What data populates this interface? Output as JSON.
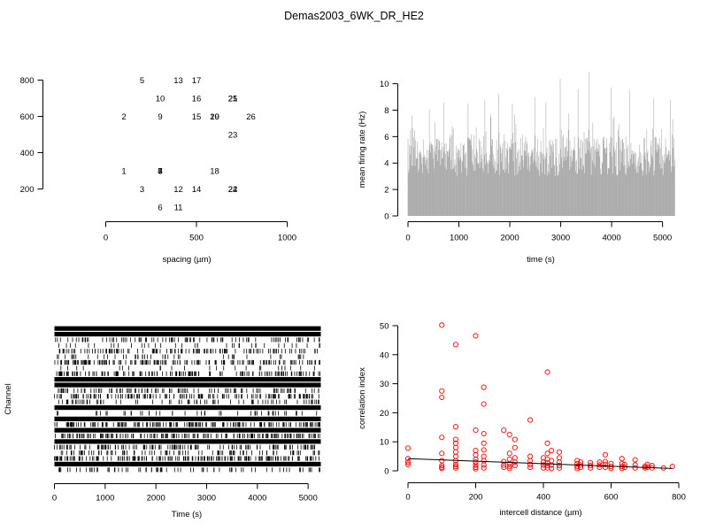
{
  "figure": {
    "title": "Demas2003_6WK_DR_HE2"
  },
  "chart_data": [
    {
      "type": "scatter",
      "panel": "electrode-layout",
      "markers": "text",
      "xlabel": "spacing (µm)",
      "ylabel": "",
      "xlim": [
        0,
        1000
      ],
      "ylim": [
        200,
        800
      ],
      "x_ticks": [
        0,
        500,
        1000
      ],
      "y_ticks": [
        200,
        400,
        600,
        800
      ],
      "points": [
        {
          "label": "1",
          "x": 100,
          "y": 300
        },
        {
          "label": "2",
          "x": 100,
          "y": 600
        },
        {
          "label": "3",
          "x": 200,
          "y": 200
        },
        {
          "label": "4",
          "x": 300,
          "y": 300
        },
        {
          "label": "5",
          "x": 200,
          "y": 800
        },
        {
          "label": "6",
          "x": 300,
          "y": 100
        },
        {
          "label": "7",
          "x": 300,
          "y": 300
        },
        {
          "label": "8",
          "x": 300,
          "y": 300
        },
        {
          "label": "9",
          "x": 300,
          "y": 600
        },
        {
          "label": "10",
          "x": 300,
          "y": 700
        },
        {
          "label": "11",
          "x": 400,
          "y": 100
        },
        {
          "label": "12",
          "x": 400,
          "y": 200
        },
        {
          "label": "13",
          "x": 400,
          "y": 800
        },
        {
          "label": "14",
          "x": 500,
          "y": 200
        },
        {
          "label": "15",
          "x": 500,
          "y": 600
        },
        {
          "label": "16",
          "x": 500,
          "y": 700
        },
        {
          "label": "17",
          "x": 500,
          "y": 800
        },
        {
          "label": "18",
          "x": 600,
          "y": 300
        },
        {
          "label": "19",
          "x": 600,
          "y": 600
        },
        {
          "label": "20",
          "x": 600,
          "y": 600
        },
        {
          "label": "21",
          "x": 700,
          "y": 700
        },
        {
          "label": "22",
          "x": 700,
          "y": 200
        },
        {
          "label": "23",
          "x": 700,
          "y": 500
        },
        {
          "label": "24",
          "x": 700,
          "y": 200
        },
        {
          "label": "25",
          "x": 700,
          "y": 700
        },
        {
          "label": "26",
          "x": 800,
          "y": 600
        }
      ]
    },
    {
      "type": "bar",
      "panel": "mean-firing-rate",
      "xlabel": "time (s)",
      "ylabel": "mean firing rate (Hz)",
      "xlim": [
        0,
        5250
      ],
      "ylim": [
        0,
        10
      ],
      "x_ticks": [
        0,
        1000,
        2000,
        3000,
        4000,
        5000
      ],
      "y_ticks": [
        0,
        2,
        4,
        6,
        8,
        10
      ],
      "bin_seconds": 10,
      "summary": {
        "typical_range": [
          3,
          6
        ],
        "max": 10.9
      },
      "peaks": [
        {
          "x": 80,
          "y": 7.6
        },
        {
          "x": 420,
          "y": 8.1
        },
        {
          "x": 700,
          "y": 8.6
        },
        {
          "x": 1180,
          "y": 8.5
        },
        {
          "x": 1510,
          "y": 8.8
        },
        {
          "x": 1780,
          "y": 9.2
        },
        {
          "x": 2050,
          "y": 8.5
        },
        {
          "x": 2490,
          "y": 9.0
        },
        {
          "x": 2710,
          "y": 8.6
        },
        {
          "x": 2990,
          "y": 10.4
        },
        {
          "x": 3340,
          "y": 9.6
        },
        {
          "x": 3560,
          "y": 10.9
        },
        {
          "x": 3990,
          "y": 9.7
        },
        {
          "x": 4350,
          "y": 9.5
        },
        {
          "x": 4820,
          "y": 8.9
        },
        {
          "x": 5150,
          "y": 8.8
        }
      ]
    },
    {
      "type": "raster",
      "panel": "spike-raster",
      "xlabel": "Time (s)",
      "ylabel": "Channel",
      "xlim": [
        0,
        5250
      ],
      "x_ticks": [
        0,
        1000,
        2000,
        3000,
        4000,
        5000
      ],
      "channels": 26,
      "channel_density": [
        1.0,
        0.95,
        0.3,
        0.12,
        0.4,
        0.15,
        0.55,
        0.08,
        0.5,
        0.9,
        0.96,
        0.35,
        0.5,
        0.25,
        0.9,
        0.15,
        0.97,
        0.6,
        0.95,
        0.55,
        0.92,
        0.45,
        0.3,
        0.6,
        0.92,
        0.25
      ]
    },
    {
      "type": "scatter",
      "panel": "correlation-vs-distance",
      "xlabel": "intercell distance (µm)",
      "ylabel": "correlation index",
      "xlim": [
        0,
        800
      ],
      "ylim": [
        0,
        50
      ],
      "x_ticks": [
        0,
        200,
        400,
        600,
        800
      ],
      "y_ticks": [
        0,
        10,
        20,
        30,
        40,
        50
      ],
      "marker_color": "#ff0000",
      "fit_line": {
        "x": [
          0,
          780
        ],
        "y": [
          4.2,
          0.8
        ],
        "color": "#000000"
      },
      "points": [
        [
          0,
          7.8
        ],
        [
          0,
          4.2
        ],
        [
          0,
          3.0
        ],
        [
          0,
          2.2
        ],
        [
          100,
          50.2
        ],
        [
          100,
          27.5
        ],
        [
          100,
          25.3
        ],
        [
          100,
          11.5
        ],
        [
          100,
          6.0
        ],
        [
          100,
          3.5
        ],
        [
          100,
          1.8
        ],
        [
          100,
          1.2
        ],
        [
          100,
          0.8
        ],
        [
          141,
          43.5
        ],
        [
          141,
          15.2
        ],
        [
          141,
          10.8
        ],
        [
          141,
          9.5
        ],
        [
          141,
          8.0
        ],
        [
          141,
          6.5
        ],
        [
          141,
          5.0
        ],
        [
          141,
          3.5
        ],
        [
          141,
          2.2
        ],
        [
          141,
          1.5
        ],
        [
          141,
          1.0
        ],
        [
          200,
          46.5
        ],
        [
          200,
          14.0
        ],
        [
          200,
          7.0
        ],
        [
          200,
          5.5
        ],
        [
          200,
          4.0
        ],
        [
          200,
          3.0
        ],
        [
          200,
          2.0
        ],
        [
          200,
          1.2
        ],
        [
          200,
          0.7
        ],
        [
          224,
          28.8
        ],
        [
          224,
          23.0
        ],
        [
          224,
          12.8
        ],
        [
          224,
          9.5
        ],
        [
          224,
          7.2
        ],
        [
          224,
          5.0
        ],
        [
          224,
          3.5
        ],
        [
          224,
          2.0
        ],
        [
          224,
          1.0
        ],
        [
          283,
          14.0
        ],
        [
          283,
          3.2
        ],
        [
          283,
          2.0
        ],
        [
          283,
          1.2
        ],
        [
          300,
          12.5
        ],
        [
          300,
          6.0
        ],
        [
          300,
          4.0
        ],
        [
          300,
          2.5
        ],
        [
          300,
          1.5
        ],
        [
          300,
          0.8
        ],
        [
          316,
          10.8
        ],
        [
          316,
          8.0
        ],
        [
          316,
          4.5
        ],
        [
          316,
          3.0
        ],
        [
          316,
          1.8
        ],
        [
          361,
          17.5
        ],
        [
          361,
          5.0
        ],
        [
          361,
          3.5
        ],
        [
          361,
          2.2
        ],
        [
          361,
          1.2
        ],
        [
          400,
          4.5
        ],
        [
          400,
          3.0
        ],
        [
          400,
          2.0
        ],
        [
          400,
          1.0
        ],
        [
          412,
          34.0
        ],
        [
          412,
          9.5
        ],
        [
          412,
          6.0
        ],
        [
          412,
          4.0
        ],
        [
          412,
          2.8
        ],
        [
          412,
          1.8
        ],
        [
          412,
          1.0
        ],
        [
          424,
          7.0
        ],
        [
          424,
          3.5
        ],
        [
          424,
          2.0
        ],
        [
          424,
          0.8
        ],
        [
          447,
          6.5
        ],
        [
          447,
          4.5
        ],
        [
          447,
          3.0
        ],
        [
          447,
          1.8
        ],
        [
          447,
          1.0
        ],
        [
          500,
          3.5
        ],
        [
          500,
          2.5
        ],
        [
          500,
          1.5
        ],
        [
          500,
          0.8
        ],
        [
          510,
          3.0
        ],
        [
          510,
          2.0
        ],
        [
          510,
          1.2
        ],
        [
          539,
          2.8
        ],
        [
          539,
          1.8
        ],
        [
          539,
          1.0
        ],
        [
          566,
          3.0
        ],
        [
          566,
          2.0
        ],
        [
          566,
          1.2
        ],
        [
          583,
          5.5
        ],
        [
          583,
          3.2
        ],
        [
          583,
          2.2
        ],
        [
          583,
          1.2
        ],
        [
          600,
          2.5
        ],
        [
          600,
          1.5
        ],
        [
          600,
          0.8
        ],
        [
          632,
          4.2
        ],
        [
          632,
          2.5
        ],
        [
          632,
          1.5
        ],
        [
          632,
          0.8
        ],
        [
          640,
          2.2
        ],
        [
          640,
          1.2
        ],
        [
          671,
          3.8
        ],
        [
          671,
          2.0
        ],
        [
          671,
          1.0
        ],
        [
          700,
          1.5
        ],
        [
          700,
          1.0
        ],
        [
          707,
          2.2
        ],
        [
          707,
          1.2
        ],
        [
          721,
          1.8
        ],
        [
          721,
          1.0
        ],
        [
          755,
          1.0
        ],
        [
          781,
          1.5
        ]
      ]
    }
  ]
}
